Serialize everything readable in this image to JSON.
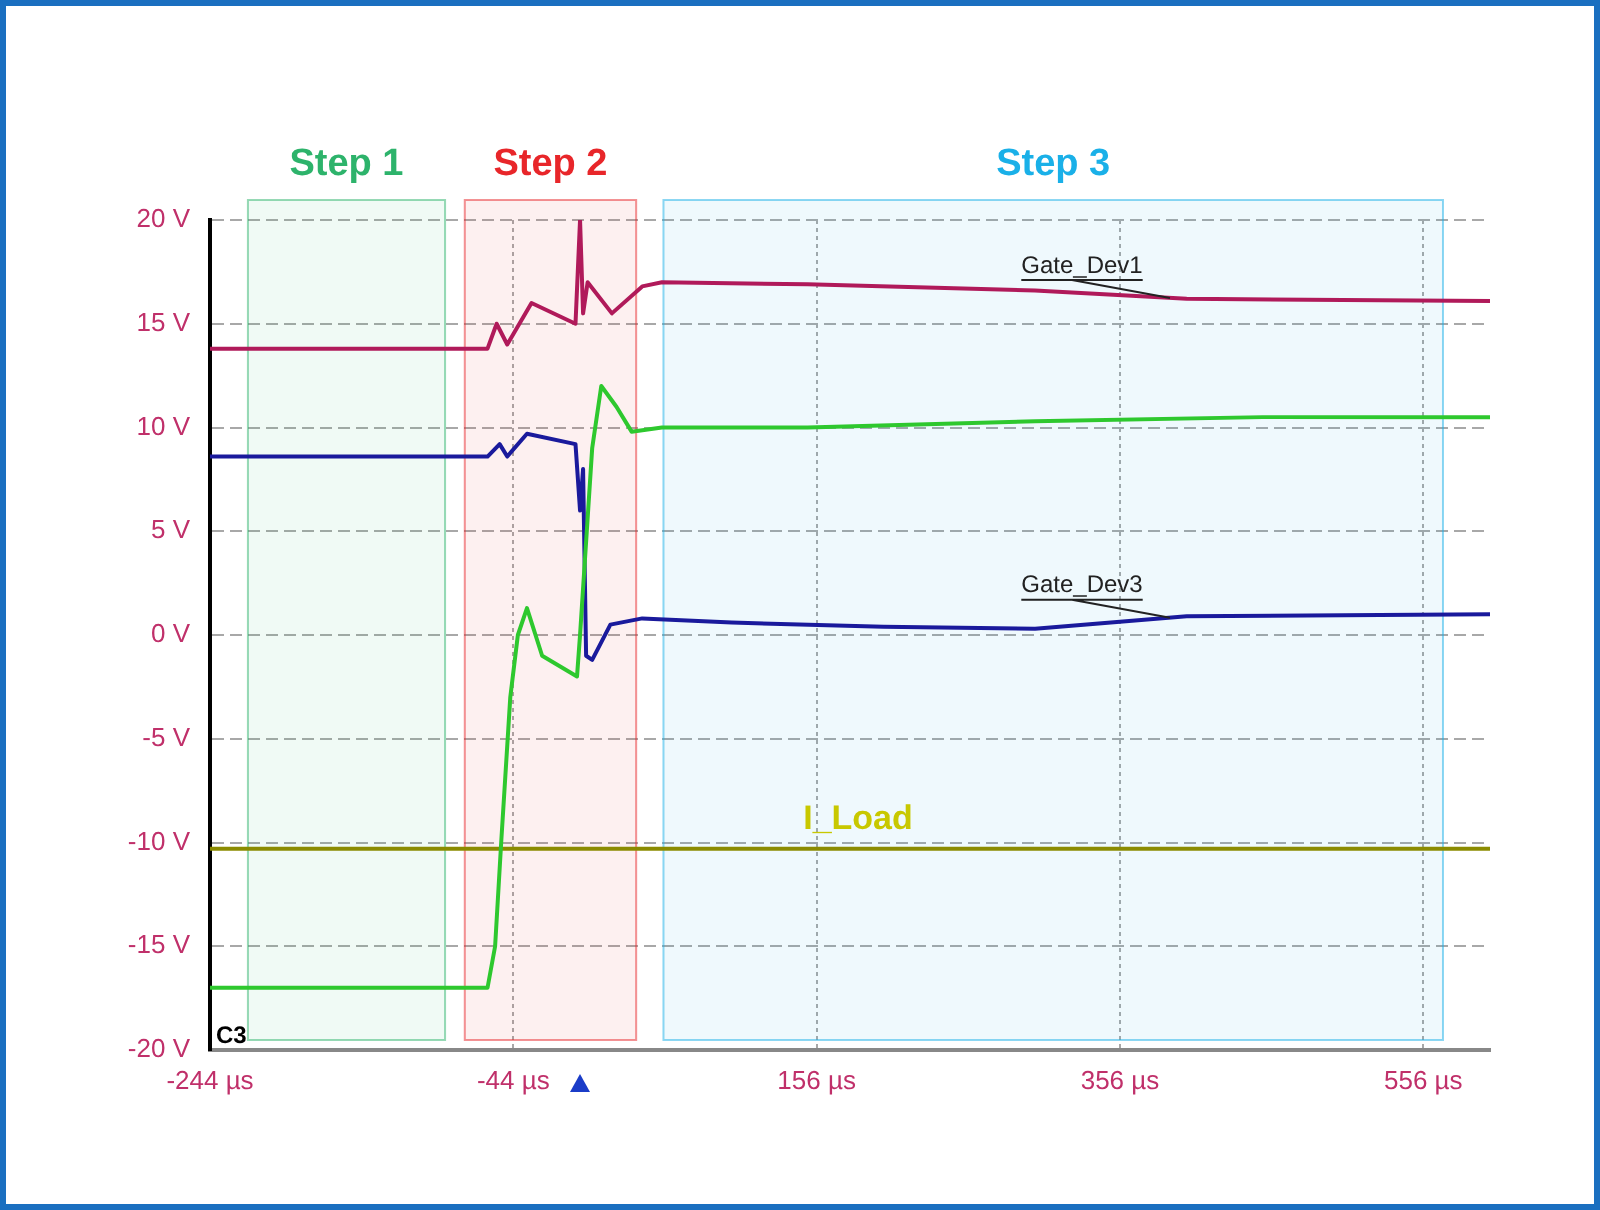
{
  "chart_data": {
    "type": "line",
    "xlim": [
      -244,
      600
    ],
    "ylim": [
      -20,
      20
    ],
    "xticks": [
      {
        "value": -244,
        "label": "-244 µs"
      },
      {
        "value": -44,
        "label": "-44 µs"
      },
      {
        "value": 156,
        "label": "156 µs"
      },
      {
        "value": 356,
        "label": "356 µs"
      },
      {
        "value": 556,
        "label": "556 µs"
      }
    ],
    "yticks": [
      {
        "value": -20,
        "label": "-20 V"
      },
      {
        "value": -15,
        "label": "-15 V"
      },
      {
        "value": -10,
        "label": "-10 V"
      },
      {
        "value": -5,
        "label": "-5 V"
      },
      {
        "value": 0,
        "label": "0 V"
      },
      {
        "value": 5,
        "label": "5 V"
      },
      {
        "value": 10,
        "label": "10 V"
      },
      {
        "value": 15,
        "label": "15 V"
      },
      {
        "value": 20,
        "label": "20 V"
      }
    ],
    "grid": true,
    "legend": false,
    "marker": "none",
    "line_style": "solid",
    "series": [
      {
        "name": "Gate_Dev1",
        "color": "#b01a5a",
        "x": [
          -244,
          -61,
          -55,
          -48,
          -32,
          -3,
          0,
          2,
          5,
          21,
          41,
          54,
          150,
          300,
          400,
          600
        ],
        "values": [
          13.8,
          13.8,
          15,
          14,
          16,
          15,
          20,
          15.5,
          17,
          15.5,
          16.8,
          17,
          16.9,
          16.6,
          16.2,
          16.1
        ]
      },
      {
        "color": "#2ec82e",
        "x": [
          -244,
          -61,
          -56,
          -52,
          -46,
          -41,
          -35,
          -25,
          -2,
          0,
          8,
          14,
          24,
          34,
          54,
          150,
          300,
          450,
          600
        ],
        "values": [
          -17,
          -17,
          -15,
          -10,
          -3,
          0,
          1.3,
          -1,
          -2,
          0,
          9,
          12,
          11,
          9.8,
          10,
          10,
          10.3,
          10.5,
          10.5
        ]
      },
      {
        "name": "Gate_Dev3",
        "color": "#1a1a9c",
        "x": [
          -244,
          -61,
          -53,
          -48,
          -35,
          -3,
          0,
          2,
          4,
          8,
          20,
          41,
          100,
          200,
          300,
          400,
          600
        ],
        "values": [
          8.6,
          8.6,
          9.2,
          8.6,
          9.7,
          9.2,
          6,
          8,
          -1,
          -1.2,
          0.5,
          0.8,
          0.6,
          0.4,
          0.3,
          0.9,
          1
        ]
      },
      {
        "name": "I_Load",
        "color": "#8b8b00",
        "x": [
          -244,
          600
        ],
        "values": [
          -10.3,
          -10.3
        ]
      }
    ],
    "bands": [
      {
        "axis": "x",
        "from": -219,
        "to": -89,
        "label": "Step 1",
        "color": "#2db36b"
      },
      {
        "axis": "x",
        "from": -76,
        "to": 37,
        "label": "Step 2",
        "color": "#e8262a"
      },
      {
        "axis": "x",
        "from": 55,
        "to": 569,
        "label": "Step 3",
        "color": "#1ab0e8"
      }
    ],
    "annotations": [
      "C3"
    ]
  }
}
